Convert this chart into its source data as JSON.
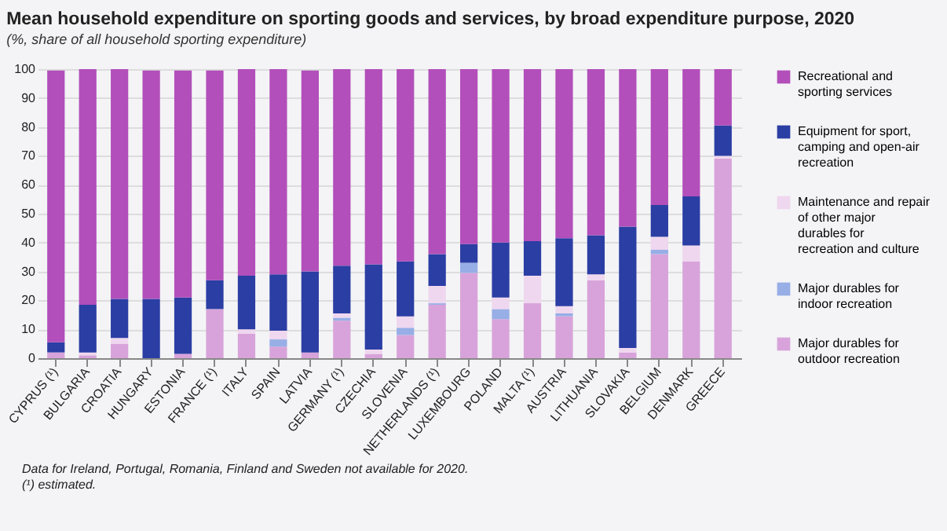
{
  "chart_data": {
    "type": "bar",
    "title": "Mean household expenditure on sporting goods and services, by broad expenditure purpose, 2020",
    "subtitle": "(%, share of all household sporting expenditure)",
    "categories": [
      "CYPRUS (¹)",
      "BULGARIA",
      "CROATIA",
      "HUNGARY",
      "ESTONIA",
      "FRANCE (¹)",
      "ITALY",
      "SPAIN",
      "LATVIA",
      "GERMANY (¹)",
      "CZECHIA",
      "SLOVENIA",
      "NETHERLANDS (¹)",
      "LUXEMBOURG",
      "POLAND",
      "MALTA (¹)",
      "AUSTRIA",
      "LITHUANIA",
      "SLOVAKIA",
      "BELGIUM",
      "DENMARK",
      "GREECE"
    ],
    "stacked": true,
    "series": [
      {
        "name": "Major durables for outdoor recreation",
        "color": "#d8a3da",
        "values": [
          2,
          1,
          5,
          null,
          1.5,
          17,
          8.5,
          4,
          2,
          13,
          1.5,
          8,
          18.5,
          29.5,
          13.5,
          19,
          14.5,
          27,
          2,
          36,
          33.5,
          69
        ]
      },
      {
        "name": "Major durables for indoor recreation",
        "color": "#97aee6",
        "values": [
          0,
          0,
          0,
          0,
          0,
          0,
          0,
          2.5,
          0,
          1,
          0,
          2.5,
          0.5,
          3.5,
          3.5,
          0,
          1,
          0,
          0,
          1.5,
          0,
          0
        ]
      },
      {
        "name": "Maintenance and repair of other major durables for recreation and culture",
        "color": "#efd7ef",
        "values": [
          null,
          1,
          2,
          0,
          null,
          null,
          1.5,
          3,
          null,
          1.5,
          1.5,
          4,
          6,
          0,
          4,
          9.5,
          2.5,
          2,
          1.5,
          4.5,
          5.5,
          1
        ]
      },
      {
        "name": "Equipment for sport, camping and open-air recreation",
        "color": "#2b3ea4",
        "values": [
          3.5,
          16.5,
          13.5,
          20.5,
          19.5,
          10,
          18.5,
          19.5,
          28,
          16.5,
          29.5,
          19,
          11,
          6.5,
          19,
          12,
          23.5,
          13.5,
          42,
          11,
          17,
          10.5
        ]
      },
      {
        "name": "Recreational and sporting services",
        "color": "#b24fba",
        "values": [
          94,
          81.5,
          79.5,
          79,
          78.5,
          72.5,
          71.5,
          71,
          69.5,
          68,
          67.5,
          66.5,
          64,
          60.5,
          60,
          59.5,
          58.5,
          57.5,
          54.5,
          47,
          44,
          19.5
        ]
      }
    ],
    "ylim": [
      0,
      100
    ],
    "yticks": [
      0,
      10,
      20,
      30,
      40,
      50,
      60,
      70,
      80,
      90,
      100
    ],
    "grid": "y",
    "legend": "right",
    "annotations": [
      "Data for Ireland, Portugal, Romania, Finland and Sweden not available for 2020.",
      "(¹) estimated."
    ]
  }
}
